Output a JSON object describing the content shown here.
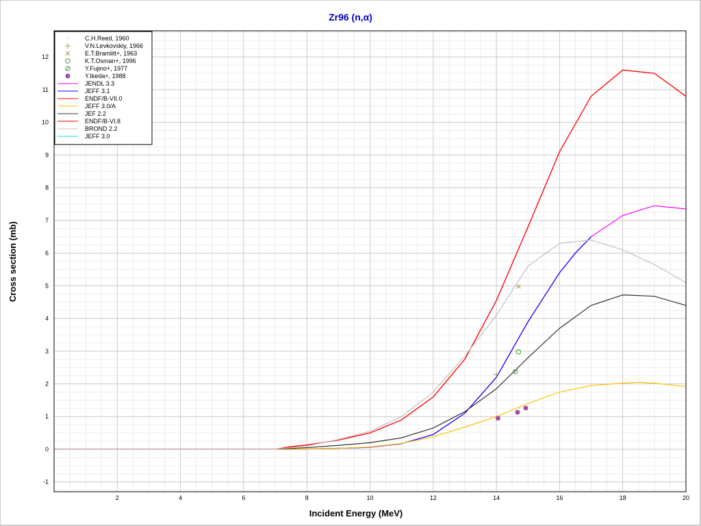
{
  "chart_data": {
    "type": "line",
    "title": "Zr96 (n,α)",
    "xlabel": "Incident Energy (MeV)",
    "ylabel": "Cross section (mb)",
    "xlim": [
      0,
      20
    ],
    "ylim": [
      -1.3,
      12.8
    ],
    "xticks": [
      2,
      4,
      6,
      8,
      10,
      12,
      14,
      16,
      18,
      20
    ],
    "yticks": [
      -1,
      0,
      1,
      2,
      3,
      4,
      5,
      6,
      7,
      8,
      9,
      10,
      11,
      12
    ],
    "grid": true,
    "legend_position": "top-left",
    "title_color": "#0000c0",
    "points": [
      {
        "name": "C.H.Reed, 1960",
        "marker": "dot",
        "color": "#c0c0a0",
        "x": [],
        "y": []
      },
      {
        "name": "V.N.Levkovskiy, 1966",
        "marker": "plus",
        "color": "#a0a060",
        "x": [
          14.0
        ],
        "y": [
          2.29
        ]
      },
      {
        "name": "E.T.Bramlitt+, 1963",
        "marker": "cross",
        "color": "#b09050",
        "x": [
          14.7
        ],
        "y": [
          4.98
        ]
      },
      {
        "name": "K.T.Osman+, 1996",
        "marker": "square-open",
        "color": "#3a9a3a",
        "x": [
          14.7
        ],
        "y": [
          2.98
        ]
      },
      {
        "name": "Y.Fujino+, 1977",
        "marker": "square-cross",
        "color": "#5a9a6a",
        "x": [
          14.6
        ],
        "y": [
          2.37
        ]
      },
      {
        "name": "Y.Ikeda+, 1988",
        "marker": "dot-filled",
        "color": "#a050a0",
        "x": [
          14.05,
          14.67,
          14.93
        ],
        "y": [
          0.95,
          1.13,
          1.26
        ]
      }
    ],
    "series": [
      {
        "name": "JENDL 3.3",
        "color": "#ff00ff",
        "x": [
          0,
          7,
          8,
          9,
          10,
          11,
          12,
          13,
          14,
          15,
          16,
          16.5,
          17,
          18,
          19,
          20
        ],
        "y": [
          0,
          0,
          0.01,
          0.03,
          0.06,
          0.17,
          0.45,
          1.1,
          2.2,
          3.9,
          5.4,
          6.0,
          6.5,
          7.15,
          7.45,
          7.35
        ]
      },
      {
        "name": "JEFF 3.1",
        "color": "#0000ff",
        "x": [
          0,
          7,
          8,
          9,
          10,
          11,
          12,
          13,
          14,
          15,
          16,
          16.5,
          17
        ],
        "y": [
          0,
          0,
          0.01,
          0.03,
          0.06,
          0.17,
          0.45,
          1.1,
          2.2,
          3.9,
          5.4,
          6.0,
          6.5
        ]
      },
      {
        "name": "ENDF/B-VII.0",
        "color": "#ff0000",
        "x": [
          0,
          7,
          7.5,
          8,
          9,
          10,
          11,
          12,
          13,
          14,
          15,
          16,
          17,
          18,
          19,
          20
        ],
        "y": [
          0,
          0,
          0.08,
          0.13,
          0.28,
          0.5,
          0.9,
          1.6,
          2.75,
          4.55,
          6.8,
          9.1,
          10.8,
          11.6,
          11.5,
          10.8
        ]
      },
      {
        "name": "JEFF 3.0/A",
        "color": "#ffc000",
        "x": [
          0,
          7,
          8,
          9,
          10,
          11,
          12,
          13,
          14,
          15,
          16,
          17,
          18,
          18.5,
          19,
          20
        ],
        "y": [
          0,
          0,
          0.01,
          0.03,
          0.07,
          0.18,
          0.38,
          0.68,
          1.0,
          1.4,
          1.75,
          1.95,
          2.02,
          2.05,
          2.02,
          1.92
        ]
      },
      {
        "name": "JEF 2.2",
        "color": "#303030",
        "x": [
          0,
          7,
          8,
          9,
          10,
          11,
          12,
          13,
          14,
          15,
          16,
          17,
          18,
          19,
          20
        ],
        "y": [
          0,
          0,
          0.05,
          0.12,
          0.2,
          0.35,
          0.65,
          1.15,
          1.85,
          2.8,
          3.7,
          4.4,
          4.72,
          4.68,
          4.4
        ]
      },
      {
        "name": "ENDF/B-VI.8",
        "color": "#ff0000",
        "x": [
          0,
          7,
          7.5,
          8,
          9,
          10,
          11,
          12,
          13,
          14,
          15,
          16,
          17,
          18,
          19,
          20
        ],
        "y": [
          0,
          0,
          0.08,
          0.13,
          0.28,
          0.5,
          0.9,
          1.6,
          2.75,
          4.55,
          6.8,
          9.1,
          10.8,
          11.6,
          11.5,
          10.8
        ]
      },
      {
        "name": "BROND 2.2",
        "color": "#c0c0c0",
        "x": [
          0,
          7,
          8,
          9,
          10,
          11,
          12,
          13,
          14,
          15,
          16,
          17,
          18,
          19,
          20
        ],
        "y": [
          0,
          0,
          0.1,
          0.3,
          0.55,
          1.0,
          1.75,
          2.85,
          4.1,
          5.6,
          6.3,
          6.4,
          6.1,
          5.65,
          5.1
        ]
      },
      {
        "name": "JEFF 3.0",
        "color": "#00e0e0",
        "x": [],
        "y": []
      }
    ]
  }
}
